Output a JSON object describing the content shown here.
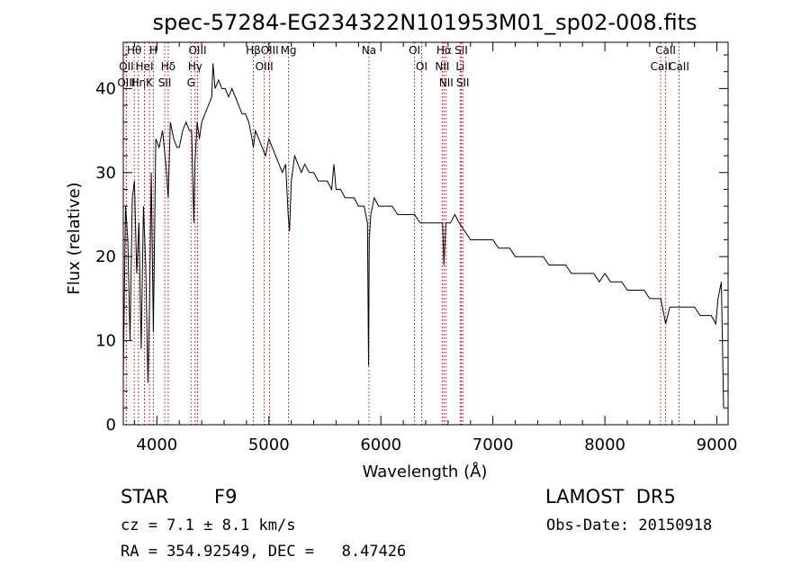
{
  "chart_data": {
    "type": "line",
    "title": "spec-57284-EG234322N101953M01_sp02-008.fits",
    "xlabel": "Wavelength (Å)",
    "ylabel": "Flux (relative)",
    "xlim": [
      3700,
      9100
    ],
    "ylim": [
      0,
      45.5
    ],
    "x_ticks": [
      4000,
      5000,
      6000,
      7000,
      8000,
      9000
    ],
    "y_ticks": [
      0,
      10,
      20,
      30,
      40
    ],
    "grid": false,
    "series": [
      {
        "x": [
          3700,
          3720,
          3740,
          3760,
          3780,
          3800,
          3820,
          3840,
          3860,
          3880,
          3900,
          3920,
          3934,
          3950,
          3968,
          3990,
          4020,
          4050,
          4080,
          4101,
          4120,
          4150,
          4180,
          4200,
          4230,
          4260,
          4290,
          4310,
          4330,
          4340,
          4360,
          4380,
          4400,
          4430,
          4460,
          4490,
          4500,
          4520,
          4550,
          4580,
          4610,
          4640,
          4670,
          4700,
          4730,
          4760,
          4790,
          4820,
          4850,
          4861,
          4880,
          4910,
          4940,
          4970,
          5000,
          5030,
          5060,
          5090,
          5120,
          5150,
          5172,
          5184,
          5200,
          5230,
          5260,
          5290,
          5320,
          5360,
          5400,
          5440,
          5480,
          5520,
          5560,
          5580,
          5600,
          5640,
          5680,
          5720,
          5760,
          5800,
          5850,
          5880,
          5890,
          5896,
          5910,
          5940,
          5980,
          6020,
          6060,
          6100,
          6150,
          6200,
          6250,
          6300,
          6350,
          6400,
          6450,
          6500,
          6550,
          6563,
          6580,
          6620,
          6660,
          6700,
          6750,
          6800,
          6850,
          6900,
          6950,
          7000,
          7050,
          7100,
          7150,
          7200,
          7250,
          7300,
          7350,
          7400,
          7450,
          7500,
          7550,
          7600,
          7650,
          7700,
          7750,
          7800,
          7850,
          7900,
          7950,
          8000,
          8050,
          8100,
          8150,
          8200,
          8250,
          8300,
          8350,
          8400,
          8450,
          8500,
          8542,
          8580,
          8620,
          8662,
          8700,
          8750,
          8800,
          8850,
          8900,
          8950,
          8990,
          9010,
          9040,
          9060
        ],
        "y": [
          6,
          26,
          22,
          10,
          27,
          29,
          18,
          24,
          9,
          26,
          19,
          5,
          14,
          30,
          11,
          34,
          33,
          35,
          31,
          27,
          36,
          34,
          33,
          33,
          35,
          36,
          35,
          35,
          24,
          31,
          36,
          34,
          36,
          37,
          38,
          39,
          43,
          40,
          41,
          40,
          40,
          39,
          40,
          39,
          38,
          37,
          37,
          36,
          34,
          33,
          35,
          34,
          33,
          32,
          34,
          33,
          32,
          31,
          30,
          31,
          25,
          23,
          29,
          32,
          31,
          30,
          31,
          30,
          30,
          29,
          29,
          29,
          28,
          31,
          28,
          28,
          27,
          27,
          27,
          26,
          26,
          24,
          7,
          22,
          25,
          27,
          26,
          26,
          26,
          26,
          25,
          25,
          25,
          25,
          24,
          24,
          24,
          24,
          24,
          19,
          24,
          24,
          25,
          24,
          23,
          22,
          22,
          22,
          22,
          22,
          21,
          21,
          21,
          20,
          20,
          20,
          20,
          20,
          20,
          19,
          19,
          19,
          19,
          18,
          18,
          18,
          18,
          18,
          17,
          18,
          17,
          17,
          17,
          16,
          16,
          16,
          16,
          15,
          15,
          15,
          12,
          14,
          14,
          14,
          14,
          14,
          14,
          13,
          13,
          13,
          12,
          15,
          17,
          2
        ]
      }
    ],
    "lines": [
      {
        "label": "Hθ",
        "x": 3798
      },
      {
        "label": "OII",
        "x": 3727
      },
      {
        "label": "OIII",
        "x": 3727
      },
      {
        "label": "Hη",
        "x": 3835
      },
      {
        "label": "HeI",
        "x": 3889
      },
      {
        "label": "K",
        "x": 3934
      },
      {
        "label": "H",
        "x": 3968
      },
      {
        "label": "Hδ",
        "x": 4101
      },
      {
        "label": "SII",
        "x": 4070
      },
      {
        "label": "OIII",
        "x": 4363
      },
      {
        "label": "Hγ",
        "x": 4341
      },
      {
        "label": "G",
        "x": 4305
      },
      {
        "label": "OIII",
        "x": 5007
      },
      {
        "label": "OIII",
        "x": 4959
      },
      {
        "label": "Hβ",
        "x": 4861
      },
      {
        "label": "Mg",
        "x": 5175
      },
      {
        "label": "Na",
        "x": 5893
      },
      {
        "label": "OI",
        "x": 6300
      },
      {
        "label": "OI",
        "x": 6364
      },
      {
        "label": "Hα",
        "x": 6563
      },
      {
        "label": "NII",
        "x": 6548
      },
      {
        "label": "NII",
        "x": 6583
      },
      {
        "label": "SII",
        "x": 6717
      },
      {
        "label": "Li",
        "x": 6708
      },
      {
        "label": "SII",
        "x": 6731
      },
      {
        "label": "CaII",
        "x": 8542
      },
      {
        "label": "CaII",
        "x": 8498
      },
      {
        "label": "CaII",
        "x": 8662
      }
    ]
  },
  "info": {
    "class_label": "STAR",
    "subclass": "F9",
    "survey": "LAMOST  DR5",
    "cz": "cz = 7.1 ± 8.1 km/s",
    "obs_date": "Obs-Date: 20150918",
    "coords": "RA = 354.92549, DEC =   8.47426"
  }
}
